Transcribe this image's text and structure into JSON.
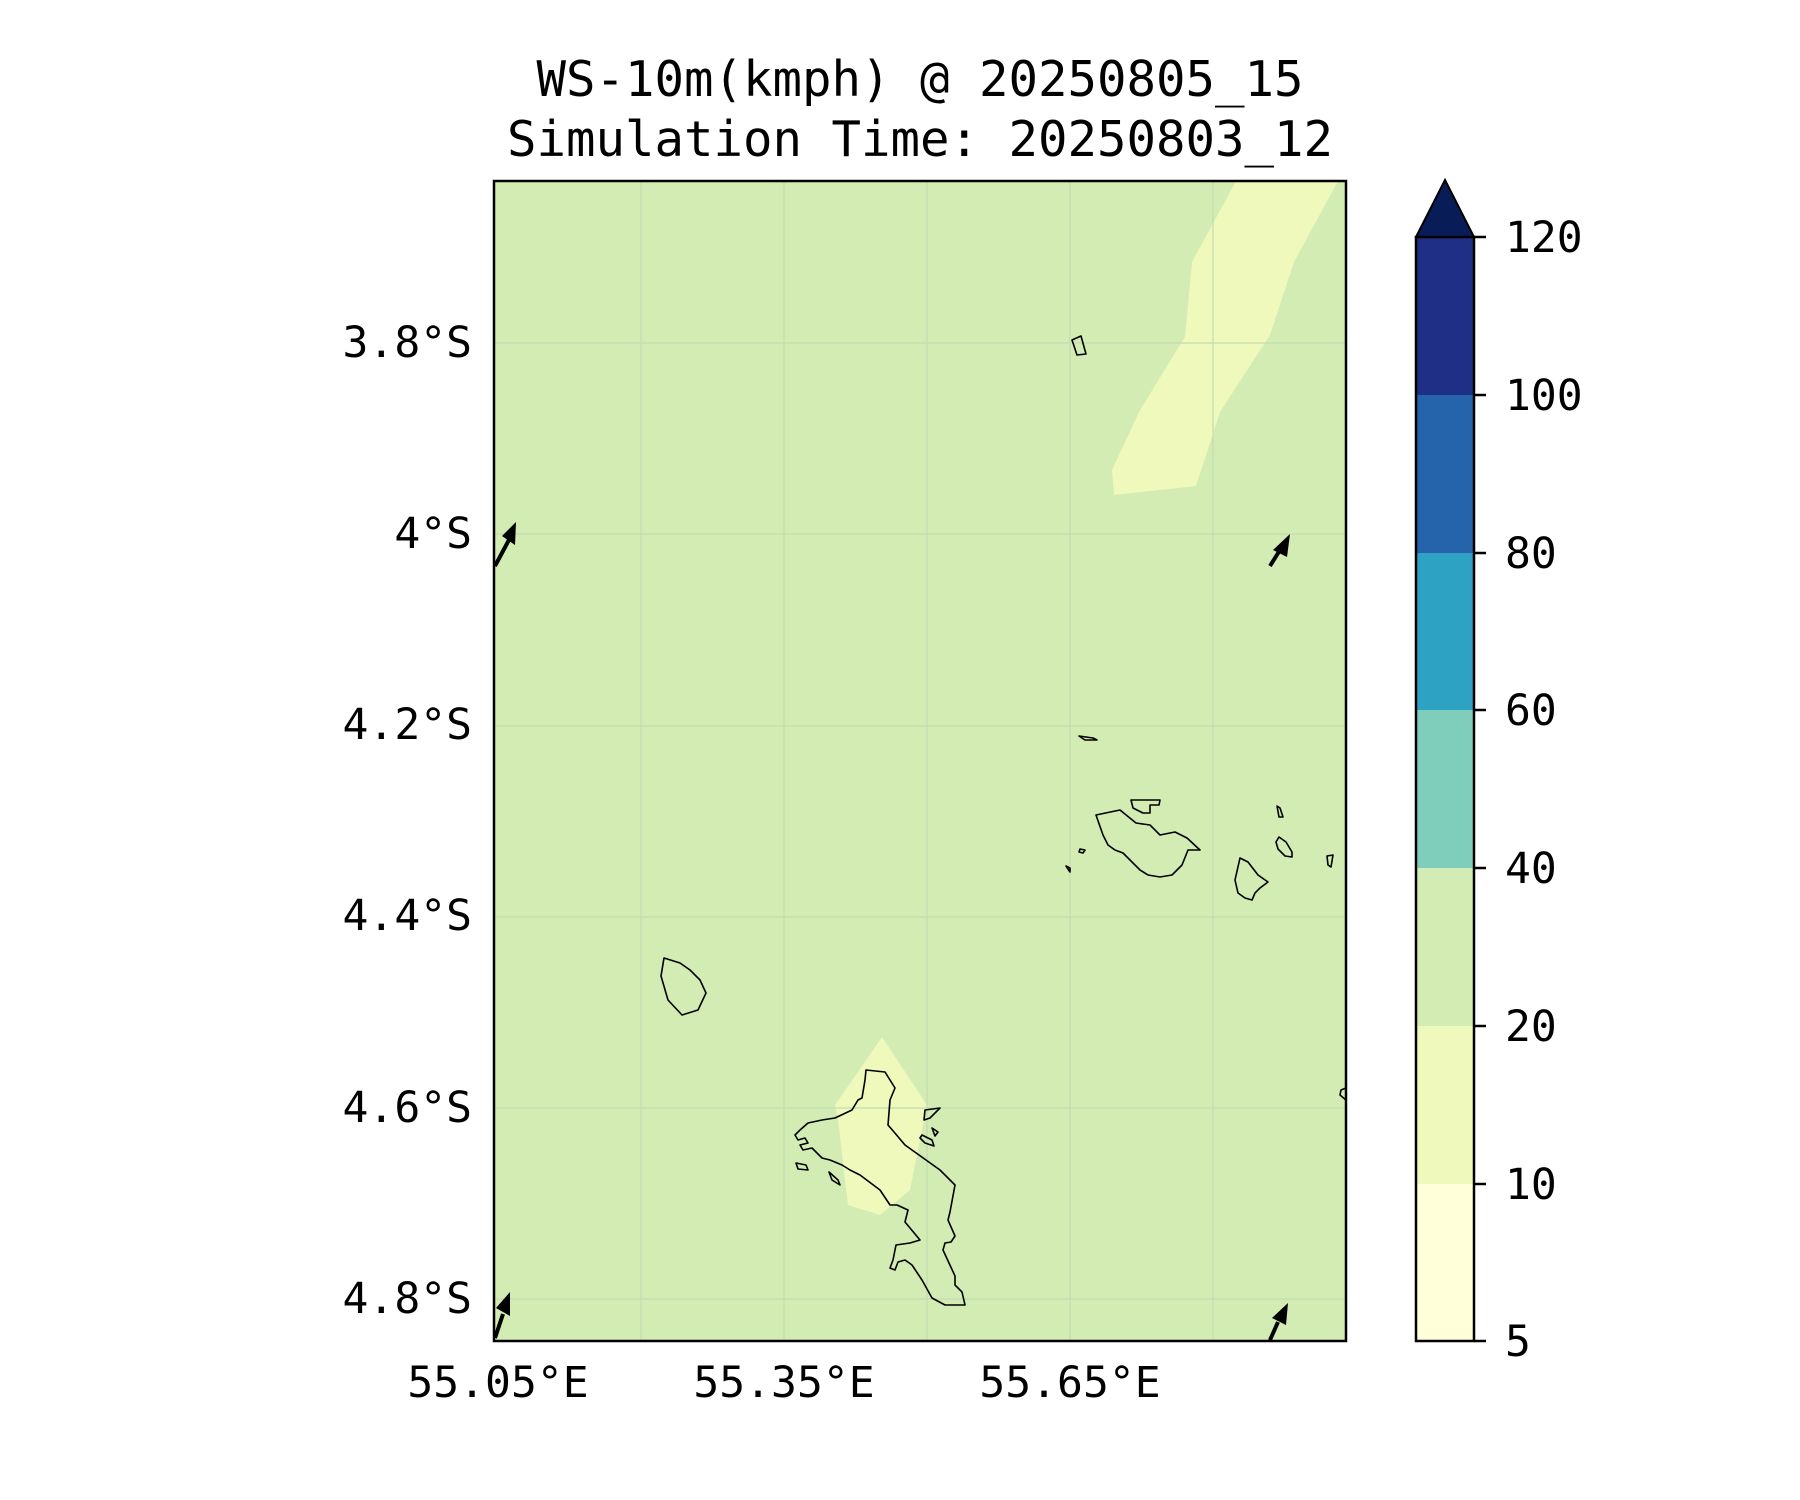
{
  "title": {
    "line1": "WS-10m(kmph) @ 20250805_15",
    "line2": "Simulation Time: 20250803_12"
  },
  "map": {
    "lon_range": [
      55.05,
      55.95
    ],
    "lat_range": [
      -4.85,
      -3.63
    ],
    "lat_ticks": [
      {
        "value": -3.8,
        "label": "3.8°S"
      },
      {
        "value": -4.0,
        "label": "4°S"
      },
      {
        "value": -4.2,
        "label": "4.2°S"
      },
      {
        "value": -4.4,
        "label": "4.4°S"
      },
      {
        "value": -4.6,
        "label": "4.6°S"
      },
      {
        "value": -4.8,
        "label": "4.8°S"
      }
    ],
    "lon_ticks": [
      {
        "value": 55.05,
        "label": "55.05°E"
      },
      {
        "value": 55.35,
        "label": "55.35°E"
      },
      {
        "value": 55.65,
        "label": "55.65°E"
      }
    ],
    "background_band": "20-40",
    "background_color": "#d2ecb4",
    "low_wind_color": "#eff9bb",
    "low_wind_areas": [
      "north-east band",
      "over Mahé island"
    ],
    "gridlines": true,
    "coastline_color": "#000000",
    "wind_arrows": [
      {
        "lon": 55.07,
        "lat": -4.0,
        "direction": "north-northeast"
      },
      {
        "lon": 55.88,
        "lat": -4.02,
        "direction": "north-northeast"
      },
      {
        "lon": 55.07,
        "lat": -4.82,
        "direction": "north-northeast"
      },
      {
        "lon": 55.88,
        "lat": -4.82,
        "direction": "north-northeast"
      }
    ]
  },
  "colorbar": {
    "labels": [
      "5",
      "10",
      "20",
      "40",
      "60",
      "80",
      "100",
      "120"
    ],
    "bands": [
      {
        "from": 5,
        "to": 10,
        "color": "#ffffd9"
      },
      {
        "from": 10,
        "to": 20,
        "color": "#eff9bb"
      },
      {
        "from": 20,
        "to": 40,
        "color": "#d2ecb4"
      },
      {
        "from": 40,
        "to": 60,
        "color": "#7fcdbb"
      },
      {
        "from": 60,
        "to": 80,
        "color": "#2ea2c3"
      },
      {
        "from": 80,
        "to": 100,
        "color": "#2564ab"
      },
      {
        "from": 100,
        "to": 120,
        "color": "#1e2f85"
      }
    ],
    "extend_color": "#081d58",
    "extend": "max"
  }
}
